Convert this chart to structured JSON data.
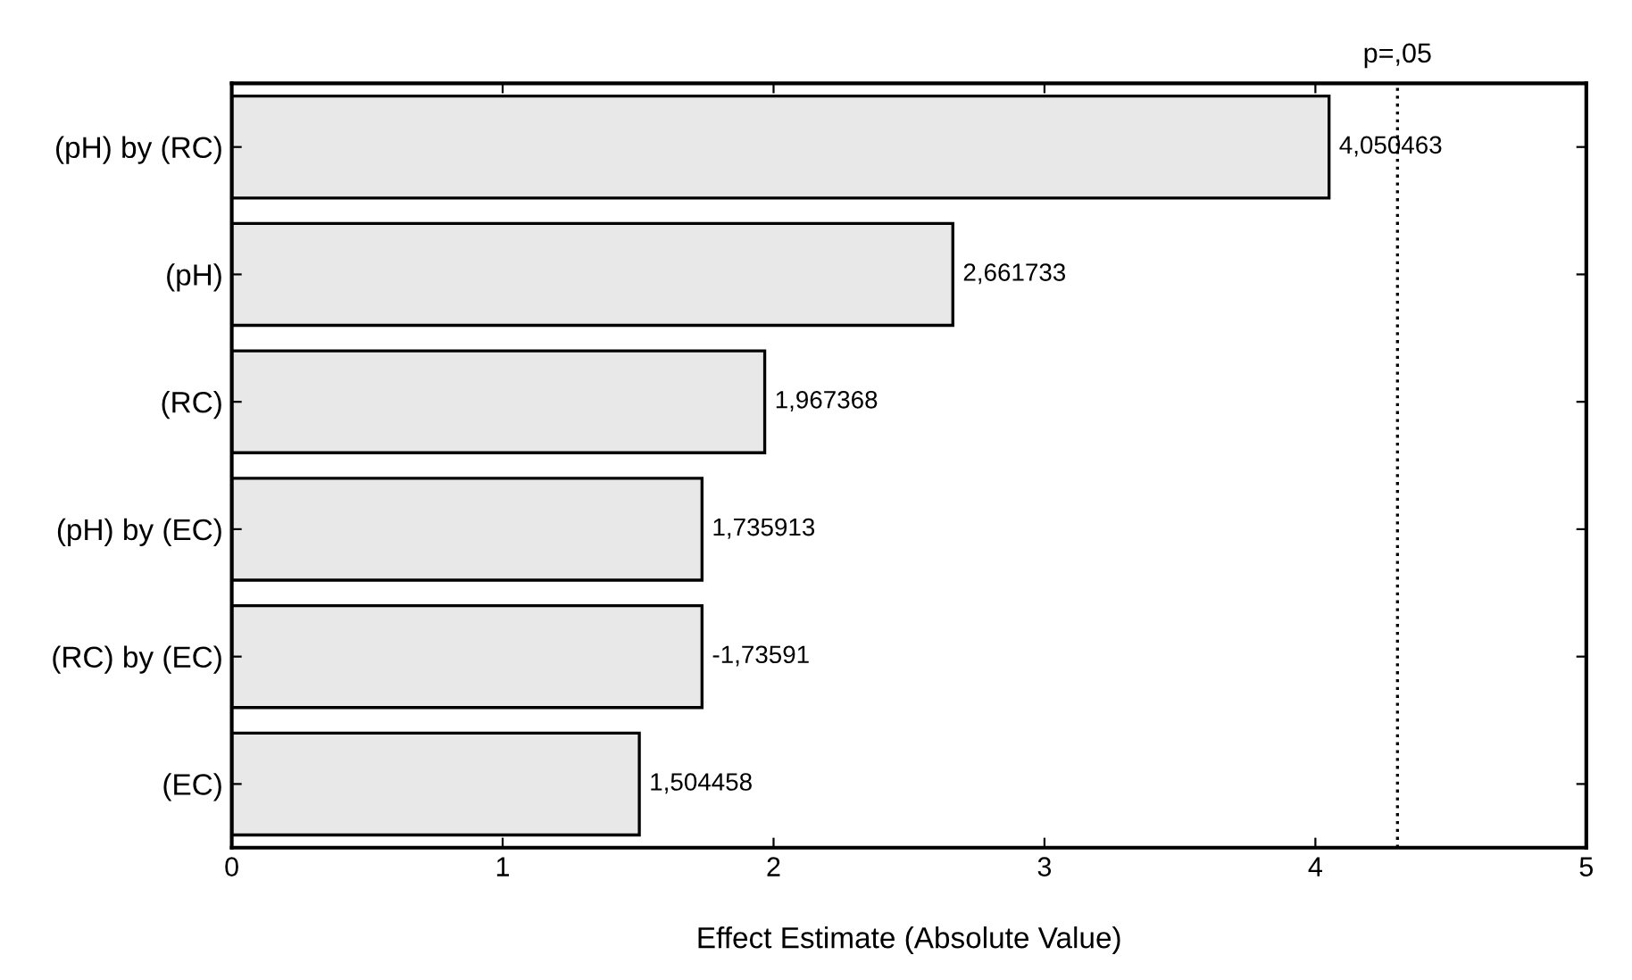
{
  "chart_data": {
    "type": "bar",
    "orientation": "horizontal",
    "xlabel": "Effect Estimate (Absolute Value)",
    "categories": [
      "(pH) by (RC)",
      "(pH)",
      "(RC)",
      "(pH) by (EC)",
      "(RC) by (EC)",
      "(EC)"
    ],
    "values": [
      4.050463,
      2.661733,
      1.967368,
      1.735913,
      1.73591,
      1.504458
    ],
    "value_labels": [
      "4,050463",
      "2,661733",
      "1,967368",
      "1,735913",
      "-1,73591",
      "1,504458"
    ],
    "color": "#e8e8e8",
    "xlim": [
      0,
      5
    ],
    "xticks": [
      0,
      1,
      2,
      3,
      4,
      5
    ],
    "ref_lines": [
      {
        "axis": "x",
        "value": 4.303,
        "label": "p=,05",
        "line_style": "dotted",
        "color": "#000000"
      }
    ],
    "grid": false,
    "legend": false
  }
}
